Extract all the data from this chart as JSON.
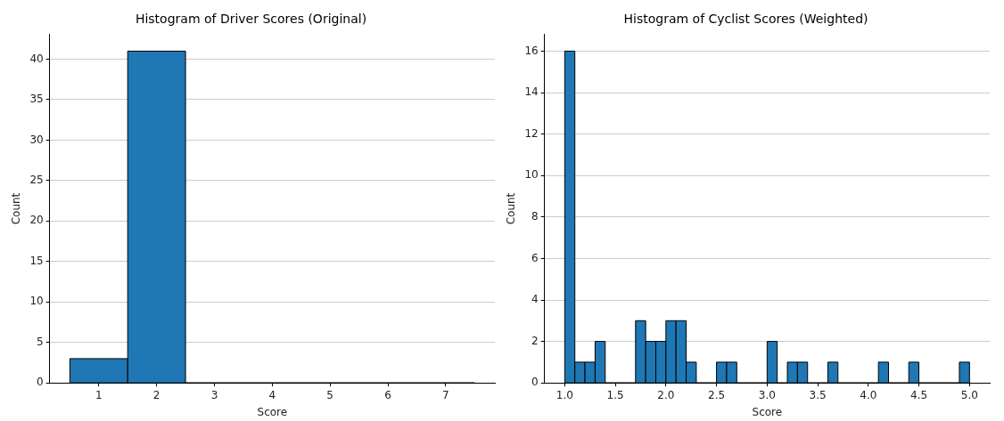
{
  "chart_data": [
    {
      "type": "histogram",
      "title": "Histogram of Driver Scores (Original)",
      "xlabel": "Score",
      "ylabel": "Count",
      "color": "#1f77b4",
      "bins": [
        0.5,
        1.5,
        2.5,
        3.5,
        4.5,
        5.5,
        6.5,
        7.5
      ],
      "values": [
        3,
        41,
        0,
        0,
        0,
        0,
        0
      ],
      "xlim": [
        0.15,
        7.85
      ],
      "xticks": [
        1,
        2,
        3,
        4,
        5,
        6,
        7
      ],
      "ylim": [
        0,
        43.05
      ],
      "yticks": [
        0,
        5,
        10,
        15,
        20,
        25,
        30,
        35,
        40
      ],
      "grid": "y",
      "legend": false
    },
    {
      "type": "histogram",
      "title": "Histogram of Cyclist Scores (Weighted)",
      "xlabel": "Score",
      "ylabel": "Count",
      "color": "#1f77b4",
      "bins": [
        1.0,
        1.1,
        1.2,
        1.3,
        1.4,
        1.5,
        1.6,
        1.7,
        1.8,
        1.9,
        2.0,
        2.1,
        2.2,
        2.3,
        2.4,
        2.5,
        2.6,
        2.7,
        2.8,
        2.9,
        3.0,
        3.1,
        3.2,
        3.3,
        3.4,
        3.5,
        3.6,
        3.7,
        3.8,
        3.9,
        4.0,
        4.1,
        4.2,
        4.3,
        4.4,
        4.5,
        4.6,
        4.7,
        4.8,
        4.9,
        5.0
      ],
      "values": [
        16,
        1,
        1,
        2,
        0,
        0,
        0,
        3,
        2,
        2,
        3,
        3,
        1,
        0,
        0,
        1,
        1,
        0,
        0,
        0,
        2,
        0,
        1,
        1,
        0,
        0,
        1,
        0,
        0,
        0,
        0,
        1,
        0,
        0,
        1,
        0,
        0,
        0,
        0,
        1
      ],
      "xlim": [
        0.8,
        5.2
      ],
      "xticks": [
        {
          "value": 1,
          "label": "1.0"
        },
        {
          "value": 1.5,
          "label": "1.5"
        },
        {
          "value": 2,
          "label": "2.0"
        },
        {
          "value": 2.5,
          "label": "2.5"
        },
        {
          "value": 3,
          "label": "3.0"
        },
        {
          "value": 3.5,
          "label": "3.5"
        },
        {
          "value": 4,
          "label": "4.0"
        },
        {
          "value": 4.5,
          "label": "4.5"
        },
        {
          "value": 5,
          "label": "5.0"
        }
      ],
      "ylim": [
        0,
        16.8
      ],
      "yticks": [
        0,
        2,
        4,
        6,
        8,
        10,
        12,
        14,
        16
      ],
      "grid": "y",
      "legend": false
    }
  ]
}
